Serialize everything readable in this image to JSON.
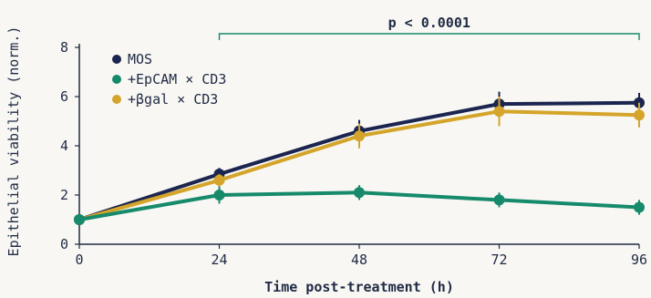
{
  "chart_data": {
    "type": "line",
    "title": "",
    "xlabel": "Time post-treatment (h)",
    "ylabel": "Epithelial viability (norm.)",
    "xlim": [
      0,
      96
    ],
    "ylim": [
      0,
      8
    ],
    "x_ticks": [
      0,
      24,
      48,
      72,
      96
    ],
    "y_ticks": [
      0,
      2,
      4,
      6,
      8
    ],
    "x": [
      0,
      24,
      48,
      72,
      96
    ],
    "grid": false,
    "legend_position": "top-left",
    "series": [
      {
        "name": "MOS",
        "color": "#1b2550",
        "values": [
          1.0,
          2.85,
          4.6,
          5.7,
          5.75
        ],
        "errors": [
          0.1,
          0.25,
          0.45,
          0.5,
          0.4
        ]
      },
      {
        "name": "+βgal × CD3",
        "color": "#d4a52a",
        "values": [
          1.0,
          2.6,
          4.4,
          5.4,
          5.25
        ],
        "errors": [
          0.1,
          0.25,
          0.5,
          0.6,
          0.5
        ]
      },
      {
        "name": "+EpCAM × CD3",
        "color": "#168a6b",
        "values": [
          1.0,
          2.0,
          2.1,
          1.8,
          1.5
        ],
        "errors": [
          0.1,
          0.35,
          0.3,
          0.3,
          0.3
        ]
      }
    ],
    "legend_order": [
      "MOS",
      "+EpCAM × CD3",
      "+βgal × CD3"
    ],
    "annotation": {
      "text": "p < 0.0001",
      "x_start": 24,
      "x_end": 96,
      "color": "#168a6b"
    }
  }
}
